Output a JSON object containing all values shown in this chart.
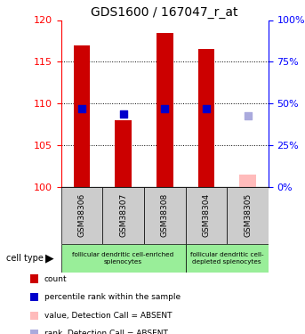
{
  "title": "GDS1600 / 167047_r_at",
  "samples": [
    "GSM38306",
    "GSM38307",
    "GSM38308",
    "GSM38304",
    "GSM38305"
  ],
  "count_values": [
    117.0,
    108.0,
    118.5,
    116.5,
    101.5
  ],
  "rank_values": [
    109.4,
    108.7,
    109.4,
    109.4,
    null
  ],
  "rank_absent_value": 108.5,
  "absent_flags": [
    false,
    false,
    false,
    false,
    true
  ],
  "ylim_left": [
    100,
    120
  ],
  "ylim_right": [
    0,
    100
  ],
  "yticks_left": [
    100,
    105,
    110,
    115,
    120
  ],
  "yticks_right": [
    0,
    25,
    50,
    75,
    100
  ],
  "bar_color_present": "#cc0000",
  "bar_color_absent": "#ffbbbb",
  "rank_color_present": "#0000cc",
  "rank_color_absent": "#aaaadd",
  "bar_width": 0.4,
  "rank_marker_size": 30,
  "legend_items": [
    {
      "label": "count",
      "color": "#cc0000"
    },
    {
      "label": "percentile rank within the sample",
      "color": "#0000cc"
    },
    {
      "label": "value, Detection Call = ABSENT",
      "color": "#ffbbbb"
    },
    {
      "label": "rank, Detection Call = ABSENT",
      "color": "#aaaadd"
    }
  ],
  "cell_type_label": "cell type",
  "sample_box_color": "#cccccc",
  "group1_color": "#99ee99",
  "group2_color": "#99ee99",
  "group1_label": "follicular dendritic cell-enriched\nsplenocytes",
  "group2_label": "follicular dendritic cell-\ndepleted splenocytes",
  "figsize": [
    3.43,
    3.75
  ],
  "dpi": 100
}
